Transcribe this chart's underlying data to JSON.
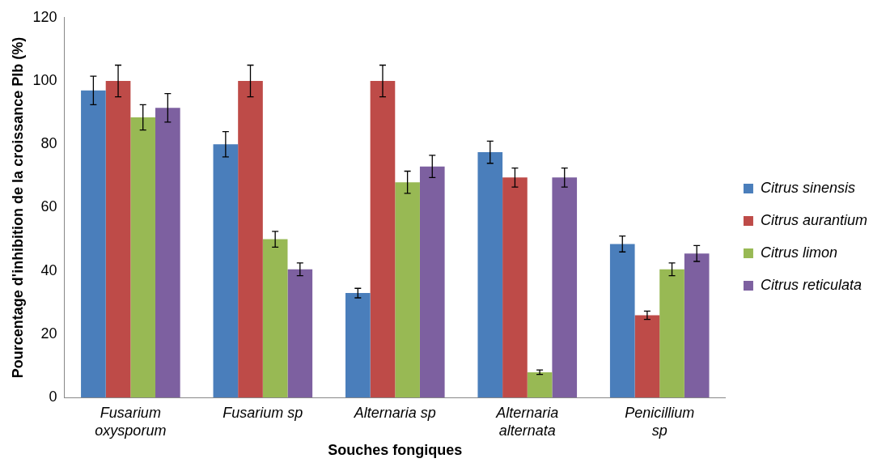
{
  "chart_data": {
    "type": "bar",
    "xlabel": "Souches fongiques",
    "ylabel": "Pourcentage d'inhibition de la croissance PIb (%)",
    "categories": [
      "Fusarium oxysporum",
      "Fusarium sp",
      "Alternaria sp",
      "Alternaria alternata",
      "Penicillium sp"
    ],
    "series": [
      {
        "name": "Citrus sinensis",
        "color": "#4a7ebb",
        "values": [
          97,
          80,
          33,
          77.5,
          48.5
        ],
        "errors": [
          4.5,
          4,
          1.5,
          3.5,
          2.5
        ]
      },
      {
        "name": "Citrus aurantium",
        "color": "#be4b48",
        "values": [
          100,
          100,
          100,
          69.5,
          26
        ],
        "errors": [
          5,
          5,
          5,
          3,
          1.3
        ]
      },
      {
        "name": "Citrus limon",
        "color": "#98b954",
        "values": [
          88.5,
          50,
          68,
          8,
          40.5
        ],
        "errors": [
          4,
          2.5,
          3.5,
          0.7,
          2
        ]
      },
      {
        "name": "Citrus reticulata",
        "color": "#7d60a0",
        "values": [
          91.5,
          40.5,
          73,
          69.5,
          45.5
        ],
        "errors": [
          4.5,
          2,
          3.5,
          3,
          2.5
        ]
      }
    ],
    "ylim": [
      0,
      120
    ],
    "yticks": [
      0,
      20,
      40,
      60,
      80,
      100,
      120
    ],
    "grid": false,
    "legend": "right"
  }
}
